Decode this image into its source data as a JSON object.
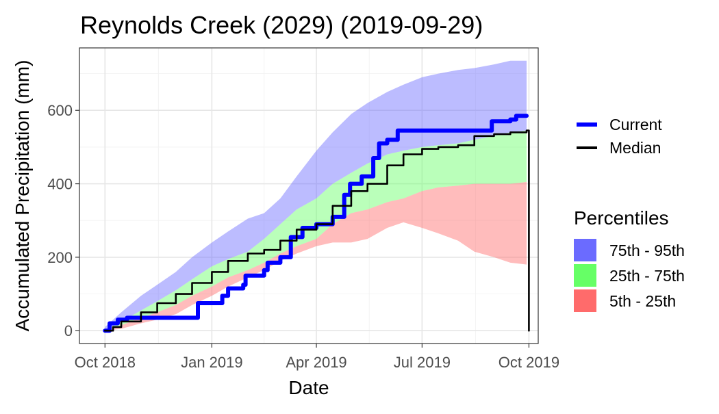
{
  "chart_data": {
    "type": "area",
    "title": "Reynolds Creek (2029) (2019-09-29)",
    "xlabel": "Date",
    "ylabel": "Accumulated Precipitation (mm)",
    "xlim": [
      "2018-09-09",
      "2019-10-09"
    ],
    "ylim": [
      -35,
      770
    ],
    "x_ticks": [
      {
        "date": "2018-10-01",
        "label": "Oct 2018"
      },
      {
        "date": "2019-01-01",
        "label": "Jan 2019"
      },
      {
        "date": "2019-04-01",
        "label": "Apr 2019"
      },
      {
        "date": "2019-07-01",
        "label": "Jul 2019"
      },
      {
        "date": "2019-10-01",
        "label": "Oct 2019"
      }
    ],
    "y_ticks": [
      0,
      200,
      400,
      600
    ],
    "grid": true,
    "legend": {
      "position": "right",
      "lines": [
        {
          "name": "Current",
          "color": "#0000ff"
        },
        {
          "name": "Median",
          "color": "#000000"
        }
      ],
      "fill_title": "Percentiles",
      "fills": [
        {
          "name": "75th - 95th",
          "color": "#6b6bff"
        },
        {
          "name": "25th - 75th",
          "color": "#66ff66"
        },
        {
          "name": "5th - 25th",
          "color": "#ff6b6b"
        }
      ]
    },
    "bands": [
      {
        "name": "75th - 95th",
        "color": "#6b6bff",
        "x": [
          "2018-10-01",
          "2018-10-15",
          "2018-11-01",
          "2018-11-15",
          "2018-12-01",
          "2018-12-15",
          "2019-01-01",
          "2019-01-15",
          "2019-02-01",
          "2019-02-15",
          "2019-03-01",
          "2019-03-15",
          "2019-04-01",
          "2019-04-15",
          "2019-05-01",
          "2019-05-15",
          "2019-06-01",
          "2019-06-15",
          "2019-07-01",
          "2019-07-15",
          "2019-08-01",
          "2019-08-15",
          "2019-09-01",
          "2019-09-15",
          "2019-09-29"
        ],
        "lower": [
          0,
          25,
          55,
          80,
          110,
          140,
          175,
          195,
          215,
          250,
          290,
          330,
          360,
          400,
          430,
          455,
          480,
          490,
          500,
          505,
          510,
          520,
          530,
          540,
          545
        ],
        "upper": [
          10,
          50,
          95,
          125,
          160,
          200,
          240,
          270,
          305,
          320,
          360,
          420,
          490,
          540,
          590,
          620,
          650,
          670,
          690,
          700,
          710,
          715,
          725,
          735,
          735
        ]
      },
      {
        "name": "25th - 75th",
        "color": "#66ff66",
        "x": [
          "2018-10-01",
          "2018-10-15",
          "2018-11-01",
          "2018-11-15",
          "2018-12-01",
          "2018-12-15",
          "2019-01-01",
          "2019-01-15",
          "2019-02-01",
          "2019-02-15",
          "2019-03-01",
          "2019-03-15",
          "2019-04-01",
          "2019-04-15",
          "2019-05-01",
          "2019-05-15",
          "2019-06-01",
          "2019-06-15",
          "2019-07-01",
          "2019-07-15",
          "2019-08-01",
          "2019-08-15",
          "2019-09-01",
          "2019-09-15",
          "2019-09-29"
        ],
        "lower": [
          0,
          15,
          35,
          50,
          70,
          95,
          120,
          145,
          165,
          185,
          210,
          230,
          250,
          290,
          320,
          330,
          350,
          360,
          380,
          390,
          395,
          400,
          400,
          400,
          405
        ],
        "upper": [
          0,
          25,
          55,
          80,
          110,
          140,
          175,
          195,
          215,
          250,
          290,
          330,
          360,
          400,
          430,
          455,
          480,
          490,
          500,
          505,
          510,
          520,
          530,
          540,
          545
        ]
      },
      {
        "name": "5th - 25th",
        "color": "#ff6b6b",
        "x": [
          "2018-10-01",
          "2018-10-15",
          "2018-11-01",
          "2018-11-15",
          "2018-12-01",
          "2018-12-15",
          "2019-01-01",
          "2019-01-15",
          "2019-02-01",
          "2019-02-15",
          "2019-03-01",
          "2019-03-15",
          "2019-04-01",
          "2019-04-15",
          "2019-05-01",
          "2019-05-15",
          "2019-06-01",
          "2019-06-15",
          "2019-07-01",
          "2019-07-15",
          "2019-08-01",
          "2019-08-15",
          "2019-09-01",
          "2019-09-15",
          "2019-09-29"
        ],
        "lower": [
          0,
          5,
          20,
          30,
          45,
          70,
          95,
          120,
          145,
          165,
          190,
          210,
          230,
          240,
          240,
          250,
          280,
          295,
          280,
          265,
          245,
          215,
          200,
          185,
          180
        ],
        "upper": [
          0,
          15,
          35,
          50,
          70,
          95,
          120,
          145,
          165,
          185,
          210,
          230,
          250,
          290,
          320,
          330,
          350,
          360,
          380,
          390,
          395,
          400,
          400,
          400,
          405
        ]
      }
    ],
    "series": [
      {
        "name": "Current",
        "color": "#0000ff",
        "x": [
          "2018-10-01",
          "2018-10-05",
          "2018-10-12",
          "2018-10-20",
          "2018-11-10",
          "2018-11-12",
          "2018-12-01",
          "2018-12-15",
          "2018-12-20",
          "2019-01-10",
          "2019-01-15",
          "2019-01-28",
          "2019-01-30",
          "2019-02-15",
          "2019-02-18",
          "2019-03-01",
          "2019-03-10",
          "2019-03-20",
          "2019-04-01",
          "2019-04-15",
          "2019-04-25",
          "2019-04-30",
          "2019-05-10",
          "2019-05-15",
          "2019-05-20",
          "2019-05-25",
          "2019-06-01",
          "2019-06-05",
          "2019-06-10",
          "2019-08-25",
          "2019-08-30",
          "2019-09-15",
          "2019-09-20",
          "2019-09-29"
        ],
        "y": [
          0,
          20,
          30,
          35,
          35,
          35,
          35,
          35,
          75,
          95,
          115,
          125,
          150,
          165,
          185,
          200,
          255,
          280,
          290,
          310,
          370,
          400,
          420,
          420,
          470,
          510,
          520,
          520,
          545,
          545,
          570,
          575,
          585,
          585
        ]
      },
      {
        "name": "Median",
        "color": "#000000",
        "x": [
          "2018-10-01",
          "2018-10-08",
          "2018-10-15",
          "2018-11-01",
          "2018-11-15",
          "2018-12-01",
          "2018-12-15",
          "2019-01-01",
          "2019-01-15",
          "2019-02-01",
          "2019-02-15",
          "2019-03-01",
          "2019-03-15",
          "2019-04-01",
          "2019-04-15",
          "2019-05-01",
          "2019-05-15",
          "2019-06-01",
          "2019-06-15",
          "2019-07-01",
          "2019-07-15",
          "2019-08-01",
          "2019-08-15",
          "2019-09-01",
          "2019-09-15",
          "2019-09-29",
          "2019-10-01"
        ],
        "y": [
          0,
          10,
          25,
          50,
          75,
          100,
          130,
          160,
          190,
          210,
          220,
          245,
          275,
          290,
          340,
          380,
          400,
          450,
          480,
          495,
          500,
          505,
          530,
          535,
          540,
          545,
          0
        ]
      }
    ]
  }
}
